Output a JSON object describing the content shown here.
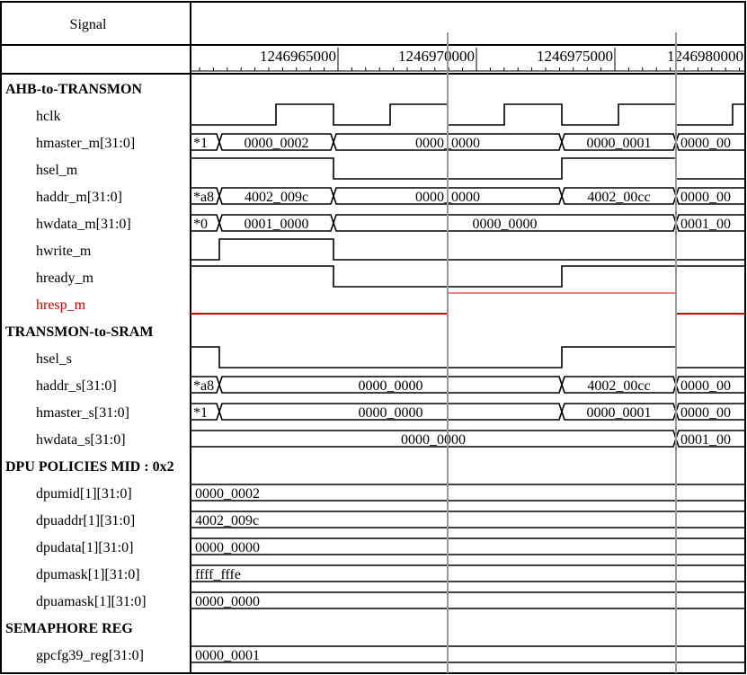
{
  "header": {
    "signal_title": "Signal"
  },
  "timeline": {
    "ticks": [
      "1246965000",
      "1246970000",
      "1246975000",
      "1246980000"
    ]
  },
  "signals": [
    {
      "name": "AHB-to-TRANSMON",
      "kind": "group"
    },
    {
      "name": "hclk",
      "kind": "clock",
      "levels": [
        0,
        1,
        0,
        1,
        0,
        1,
        0,
        1,
        0,
        1
      ]
    },
    {
      "name": "hmaster_m[31:0]",
      "kind": "bus",
      "values": [
        "*1",
        "0000_0002",
        "0000_0000",
        "0000_0001",
        "0000_00"
      ]
    },
    {
      "name": "hsel_m",
      "kind": "bit",
      "levels": [
        1,
        0,
        1,
        0
      ]
    },
    {
      "name": "haddr_m[31:0]",
      "kind": "bus",
      "values": [
        "*a8",
        "4002_009c",
        "0000_0000",
        "4002_00cc",
        "0000_00"
      ]
    },
    {
      "name": "hwdata_m[31:0]",
      "kind": "bus",
      "values": [
        "*0",
        "0001_0000",
        "0000_0000",
        "0001_00"
      ]
    },
    {
      "name": "hwrite_m",
      "kind": "bit",
      "levels": [
        0,
        1,
        0
      ]
    },
    {
      "name": "hready_m",
      "kind": "bit",
      "levels": [
        1,
        0,
        1
      ]
    },
    {
      "name": "hresp_m",
      "kind": "bit",
      "levels": [
        0,
        1,
        0
      ],
      "color": "#cc0000"
    },
    {
      "name": "TRANSMON-to-SRAM",
      "kind": "group"
    },
    {
      "name": "hsel_s",
      "kind": "bit",
      "levels": [
        1,
        0,
        1,
        0
      ]
    },
    {
      "name": "haddr_s[31:0]",
      "kind": "bus",
      "values": [
        "*a8",
        "0000_0000",
        "4002_00cc",
        "0000_00"
      ]
    },
    {
      "name": "hmaster_s[31:0]",
      "kind": "bus",
      "values": [
        "*1",
        "0000_0000",
        "0000_0001",
        "0000_00"
      ]
    },
    {
      "name": "hwdata_s[31:0]",
      "kind": "bus",
      "values": [
        "0000_0000",
        "0001_00"
      ]
    },
    {
      "name": "DPU POLICIES MID : 0x2",
      "kind": "group"
    },
    {
      "name": "dpumid[1][31:0]",
      "kind": "bus",
      "values": [
        "0000_0002"
      ]
    },
    {
      "name": "dpuaddr[1][31:0]",
      "kind": "bus",
      "values": [
        "4002_009c"
      ]
    },
    {
      "name": "dpudata[1][31:0]",
      "kind": "bus",
      "values": [
        "0000_0000"
      ]
    },
    {
      "name": "dpumask[1][31:0]",
      "kind": "bus",
      "values": [
        "ffff_fffe"
      ]
    },
    {
      "name": "dpuamask[1][31:0]",
      "kind": "bus",
      "values": [
        "0000_0000"
      ]
    },
    {
      "name": "SEMAPHORE REG",
      "kind": "group"
    },
    {
      "name": "gpcfg39_reg[31:0]",
      "kind": "bus",
      "values": [
        "0000_0001"
      ]
    }
  ],
  "colors": {
    "grid": "#000000",
    "cursor": "#999999",
    "hresp": "#cc0000",
    "hresp_hi": "#f08080"
  }
}
